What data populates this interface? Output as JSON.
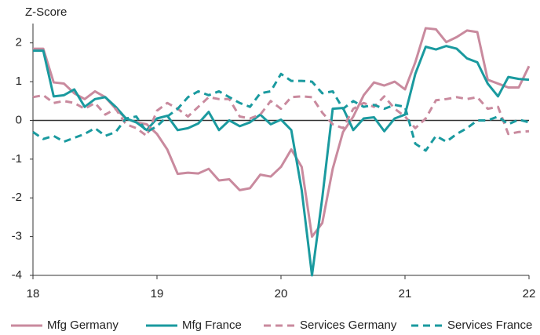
{
  "chart_data": {
    "type": "line",
    "ylabel": "Z-Score",
    "x": [
      18,
      18.083,
      18.167,
      18.25,
      18.333,
      18.417,
      18.5,
      18.583,
      18.667,
      18.75,
      18.833,
      18.917,
      19,
      19.083,
      19.167,
      19.25,
      19.333,
      19.417,
      19.5,
      19.583,
      19.667,
      19.75,
      19.833,
      19.917,
      20,
      20.083,
      20.167,
      20.25,
      20.333,
      20.417,
      20.5,
      20.583,
      20.667,
      20.75,
      20.833,
      20.917,
      21,
      21.083,
      21.167,
      21.25,
      21.333,
      21.417,
      21.5,
      21.583,
      21.667,
      21.75,
      21.833,
      21.917,
      22
    ],
    "xlim": [
      18,
      22
    ],
    "xticks": [
      18,
      19,
      20,
      21,
      22
    ],
    "ylim": [
      -4,
      2.5
    ],
    "yticks": [
      -4,
      -3,
      -2,
      -1,
      0,
      1,
      2
    ],
    "legend": "bottom",
    "series": [
      {
        "name": "Mfg Germany",
        "color": "#c98a9e",
        "dashed": false,
        "values": [
          1.85,
          1.85,
          0.98,
          0.95,
          0.7,
          0.55,
          0.75,
          0.6,
          0.3,
          0.05,
          -0.05,
          -0.1,
          -0.35,
          -0.75,
          -1.38,
          -1.35,
          -1.37,
          -1.25,
          -1.55,
          -1.52,
          -1.8,
          -1.75,
          -1.4,
          -1.45,
          -1.2,
          -0.75,
          -1.2,
          -3.0,
          -2.65,
          -1.25,
          -0.3,
          0.1,
          0.65,
          0.98,
          0.9,
          1.0,
          0.8,
          1.5,
          2.38,
          2.35,
          2.02,
          2.15,
          2.32,
          2.28,
          1.05,
          0.95,
          0.85,
          0.85,
          1.4
        ]
      },
      {
        "name": "Mfg France",
        "color": "#1a9a9f",
        "dashed": false,
        "values": [
          1.8,
          1.8,
          0.62,
          0.65,
          0.8,
          0.35,
          0.55,
          0.6,
          0.35,
          0.05,
          -0.05,
          -0.25,
          0.05,
          0.12,
          -0.25,
          -0.2,
          -0.08,
          0.22,
          -0.25,
          0.0,
          -0.15,
          -0.05,
          0.15,
          -0.1,
          0.02,
          -0.25,
          -1.8,
          -4.0,
          -2.0,
          0.3,
          0.32,
          -0.25,
          0.05,
          0.08,
          -0.28,
          0.05,
          0.15,
          1.2,
          1.9,
          1.83,
          1.92,
          1.85,
          1.6,
          1.5,
          0.95,
          0.62,
          1.12,
          1.07,
          1.05
        ]
      },
      {
        "name": "Services Germany",
        "color": "#c98a9e",
        "dashed": true,
        "values": [
          0.6,
          0.65,
          0.45,
          0.5,
          0.45,
          0.3,
          0.45,
          0.15,
          0.3,
          -0.1,
          -0.2,
          -0.4,
          0.25,
          0.45,
          0.3,
          0.1,
          0.35,
          0.6,
          0.55,
          0.55,
          0.1,
          0.05,
          0.15,
          0.5,
          0.3,
          0.6,
          0.62,
          0.6,
          0.2,
          -0.1,
          -0.2,
          0.3,
          0.45,
          0.35,
          0.62,
          0.3,
          0.1,
          -0.2,
          0.05,
          0.52,
          0.55,
          0.6,
          0.55,
          0.6,
          0.3,
          0.35,
          -0.35,
          -0.3,
          -0.28
        ]
      },
      {
        "name": "Services France",
        "color": "#1a9a9f",
        "dashed": true,
        "values": [
          -0.3,
          -0.48,
          -0.4,
          -0.55,
          -0.45,
          -0.35,
          -0.2,
          -0.4,
          -0.3,
          0.05,
          0.1,
          -0.3,
          -0.15,
          0.1,
          0.3,
          0.6,
          0.75,
          0.65,
          0.75,
          0.6,
          0.45,
          0.35,
          0.7,
          0.75,
          1.2,
          1.02,
          1.02,
          1.0,
          0.7,
          0.75,
          0.3,
          0.5,
          0.35,
          0.4,
          0.3,
          0.4,
          0.35,
          -0.6,
          -0.78,
          -0.4,
          -0.55,
          -0.35,
          -0.2,
          0.0,
          0.0,
          0.1,
          -0.1,
          0.02,
          -0.05
        ]
      }
    ]
  }
}
